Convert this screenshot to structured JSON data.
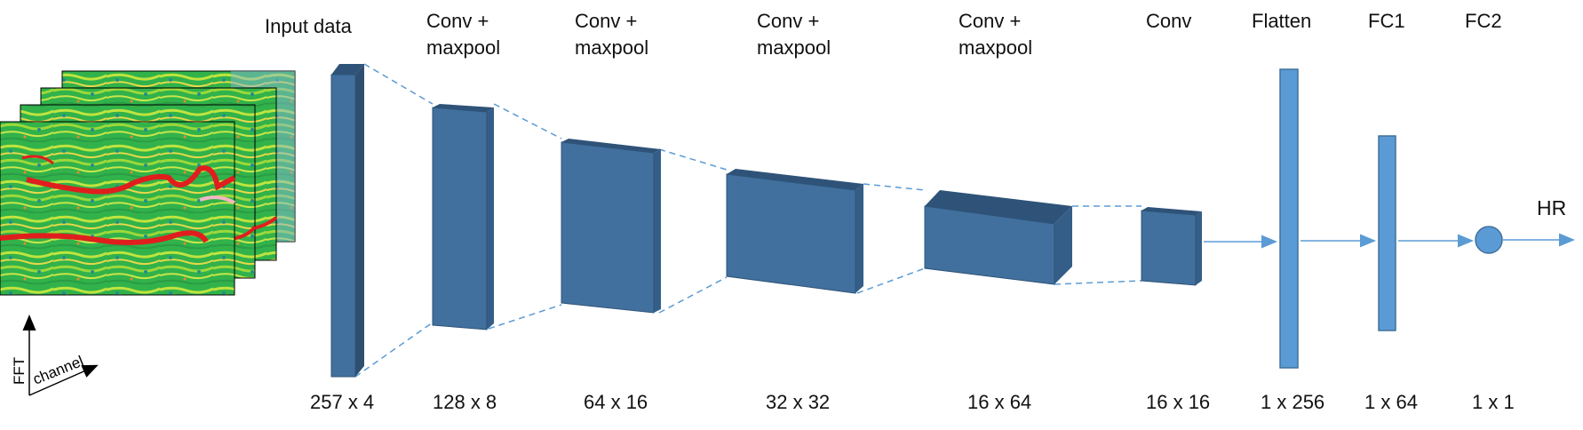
{
  "input": {
    "title": "Input data",
    "dims": "257 x 4"
  },
  "axes": {
    "vertical": "FFT",
    "diagonal": "channel"
  },
  "layers": [
    {
      "id": "conv1",
      "line1": "Conv +",
      "line2": "maxpool",
      "dims": "128 x 8"
    },
    {
      "id": "conv2",
      "line1": "Conv +",
      "line2": "maxpool",
      "dims": "64 x 16"
    },
    {
      "id": "conv3",
      "line1": "Conv +",
      "line2": "maxpool",
      "dims": "32 x 32"
    },
    {
      "id": "conv4",
      "line1": "Conv +",
      "line2": "maxpool",
      "dims": "16 x 64"
    },
    {
      "id": "conv5",
      "line1": "Conv",
      "line2": "",
      "dims": "16 x 16"
    },
    {
      "id": "flatten",
      "line1": "Flatten",
      "line2": "",
      "dims": "1 x 256"
    },
    {
      "id": "fc1",
      "line1": "FC1",
      "line2": "",
      "dims": "1 x 64"
    },
    {
      "id": "fc2",
      "line1": "FC2",
      "line2": "",
      "dims": "1 x 1"
    }
  ],
  "output": {
    "label": "HR"
  },
  "colors": {
    "block_front": "#41709e",
    "block_top": "#2f5378",
    "block_side": "#345e87",
    "fc_fill": "#5b9bd5",
    "fc_stroke": "#41719c",
    "connector": "#5b9bd5",
    "spectrogram_green": "#22b14c",
    "spectrogram_yellow": "#c8e64a",
    "spectrogram_red": "#e01e1e"
  }
}
